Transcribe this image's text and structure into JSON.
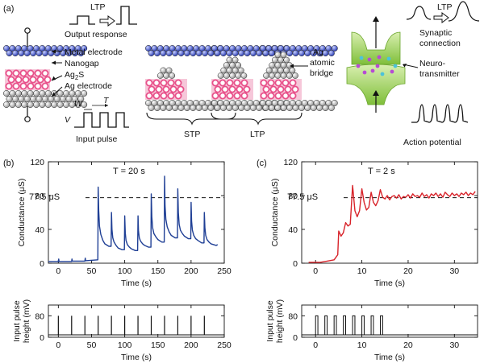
{
  "figure": {
    "panel_a": {
      "label": "(a)",
      "ltp_left": "LTP",
      "output_response": "Output response",
      "metal_electrode": "Metal electrode",
      "nanogap": "Nanogap",
      "ag2s_base": "Ag",
      "ag2s_sub": "2",
      "ag2s_tail": "S",
      "ag_electrode": "Ag electrode",
      "w": "W",
      "t": "T",
      "v": "V",
      "input_pulse": "Input pulse",
      "ag_bridge_1": "Ag",
      "ag_bridge_2": "atomic",
      "ag_bridge_3": "bridge",
      "stp": "STP",
      "ltp_bottom": "LTP",
      "ltp_right": "LTP",
      "synaptic_1": "Synaptic",
      "synaptic_2": "connection",
      "neuro_1": "Neuro-",
      "neuro_2": "transmitter",
      "action_potential": "Action potential"
    },
    "panel_b": {
      "label": "(b)",
      "condition": "T = 20 s",
      "threshold_label": "77.5 μS"
    },
    "panel_c": {
      "label": "(c)",
      "condition": "T = 2 s",
      "threshold_label": "77.5 μS"
    }
  },
  "colors": {
    "blue_trace": "#1f3f95",
    "red_trace": "#d8232a",
    "electrode_blue": "#2d3fb5",
    "ag2s_pink": "#e8508a",
    "synapse_green": "#9fd25a"
  },
  "chart_data": [
    {
      "id": "b-conductance",
      "type": "line",
      "xlabel": "Time (s)",
      "ylabel": "Conductance (μS)",
      "xlim": [
        -15,
        250
      ],
      "ylim": [
        0,
        120
      ],
      "xticks": [
        0,
        50,
        100,
        150,
        200,
        250
      ],
      "yticks": [
        0,
        40,
        80,
        120
      ],
      "threshold": 77.5,
      "series": [
        {
          "color": "#1f3f95",
          "x": [
            -15,
            0,
            0.5,
            1,
            20,
            20.5,
            21,
            40,
            40.5,
            41,
            59.5,
            60,
            60.8,
            62,
            64,
            67,
            70,
            76,
            79.5,
            80,
            80.8,
            82,
            84,
            87,
            90,
            96,
            99.5,
            100,
            100.8,
            102,
            104,
            107,
            110,
            116,
            119.5,
            120,
            120.8,
            122,
            124,
            127,
            130,
            136,
            139.5,
            140,
            140.8,
            142,
            144,
            147,
            150,
            156,
            159.5,
            160,
            160.8,
            162,
            164,
            167,
            170,
            176,
            179.5,
            180,
            180.8,
            182,
            184,
            187,
            190,
            196,
            199.5,
            200,
            200.8,
            202,
            204,
            207,
            210,
            216,
            219.5,
            220,
            220.8,
            222,
            224,
            227,
            230,
            238,
            240
          ],
          "y": [
            2,
            2,
            5,
            2,
            2,
            5,
            2.5,
            2.5,
            6,
            3,
            4,
            90,
            62,
            44,
            34,
            27,
            23,
            20,
            20,
            60,
            40,
            30,
            25,
            21,
            18,
            16,
            16,
            56,
            36,
            27,
            22,
            19,
            17,
            15,
            15,
            56,
            38,
            30,
            26,
            23,
            21,
            19,
            19,
            82,
            55,
            42,
            35,
            31,
            28,
            25,
            25,
            103,
            68,
            52,
            43,
            37,
            33,
            30,
            30,
            88,
            60,
            46,
            39,
            35,
            32,
            29,
            29,
            72,
            50,
            39,
            33,
            29,
            27,
            24,
            24,
            60,
            42,
            33,
            28,
            25,
            23,
            21,
            22
          ]
        }
      ]
    },
    {
      "id": "b-pulse",
      "type": "line",
      "xlabel": "Time (s)",
      "ylabel": "Input pulse height (mV)",
      "xlim": [
        -15,
        250
      ],
      "ylim": [
        0,
        120
      ],
      "xticks": [
        0,
        50,
        100,
        150,
        200,
        250
      ],
      "yticks": [
        0,
        80
      ],
      "pulse_height": 80,
      "pulse_times": [
        0,
        20,
        40,
        60,
        80,
        100,
        120,
        140,
        160,
        180,
        200,
        220
      ]
    },
    {
      "id": "c-conductance",
      "type": "line",
      "xlabel": "Time (s)",
      "ylabel": "Conductance (μS)",
      "xlim": [
        -3,
        35
      ],
      "ylim": [
        0,
        120
      ],
      "xticks": [
        0,
        10,
        20,
        30
      ],
      "yticks": [
        0,
        40,
        80,
        120
      ],
      "threshold": 77.5,
      "series": [
        {
          "color": "#d8232a",
          "x": [
            -1.5,
            0,
            1,
            2,
            3,
            4,
            4.8,
            5,
            5.5,
            6,
            6.5,
            7,
            7.5,
            8,
            8.5,
            9,
            9.5,
            10,
            10.5,
            11,
            11.5,
            12,
            12.5,
            13,
            13.5,
            14,
            14.5,
            15,
            15.5,
            16,
            16.5,
            17,
            17.5,
            18,
            18.5,
            19,
            19.5,
            20,
            20.5,
            21,
            21.5,
            22,
            22.5,
            23,
            23.5,
            24,
            24.5,
            25,
            25.5,
            26,
            26.5,
            27,
            27.5,
            28,
            28.5,
            29,
            29.5,
            30,
            30.5,
            31,
            31.5,
            32,
            32.5,
            33,
            33.5,
            34,
            34.5
          ],
          "y": [
            1,
            1,
            1,
            2,
            3,
            4,
            10,
            38,
            32,
            36,
            48,
            44,
            46,
            92,
            62,
            55,
            62,
            88,
            72,
            63,
            66,
            84,
            72,
            68,
            74,
            87,
            78,
            76,
            80,
            75,
            79,
            80,
            77,
            81,
            76,
            79,
            78,
            81,
            77,
            82,
            79,
            80,
            78,
            83,
            79,
            81,
            77,
            82,
            80,
            83,
            79,
            82,
            78,
            84,
            81,
            79,
            83,
            80,
            82,
            79,
            83,
            81,
            84,
            80,
            83,
            81,
            85
          ]
        }
      ]
    },
    {
      "id": "c-pulse",
      "type": "line",
      "xlabel": "Time (s)",
      "ylabel": "Input pulse height (mV)",
      "xlim": [
        -3,
        35
      ],
      "ylim": [
        0,
        120
      ],
      "xticks": [
        0,
        10,
        20,
        30
      ],
      "yticks": [
        0,
        80
      ],
      "pulse_height": 80,
      "pulse_width": 0.5,
      "pulse_times": [
        0,
        2,
        4,
        6,
        8,
        10,
        12,
        14
      ]
    }
  ]
}
